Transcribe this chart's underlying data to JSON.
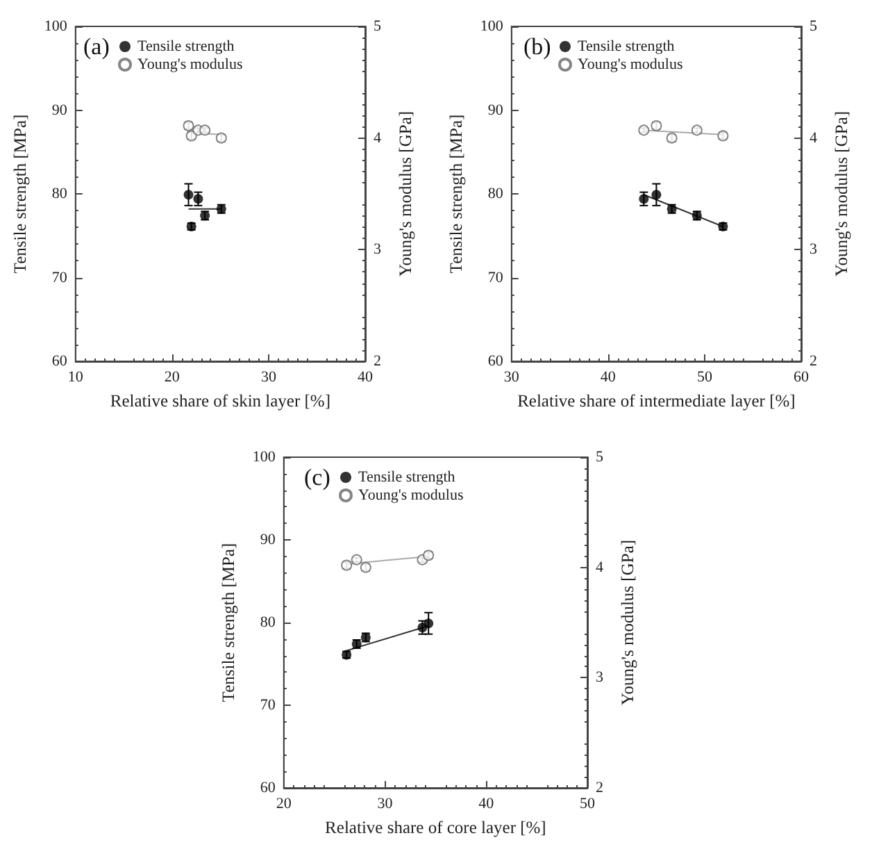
{
  "chart_data": [
    {
      "type": "scatter",
      "annotations": [
        "(a)"
      ],
      "xlabel": "Relative share of skin layer [%]",
      "ylabel": "Tensile strength [MPa]",
      "y2label": "Young's modulus [GPa]",
      "xlim": [
        10,
        40
      ],
      "xticks": [
        10,
        20,
        30,
        40
      ],
      "ylim": [
        60,
        100
      ],
      "yticks": [
        60,
        70,
        80,
        90,
        100
      ],
      "y2lim": [
        2,
        5
      ],
      "y2ticks": [
        2,
        3,
        4,
        5
      ],
      "grid": false,
      "legend": "top left",
      "marker": "circle",
      "series": [
        {
          "name": "Tensile strength",
          "color": "#000000",
          "x": [
            21.7,
            22.0,
            22.7,
            23.4,
            25.1
          ],
          "values": [
            79.9,
            76.1,
            79.4,
            77.4,
            78.2
          ],
          "errors": [
            1.3,
            0.4,
            0.8,
            0.5,
            0.5
          ]
        },
        {
          "name": "Young's modulus",
          "color": "#666666",
          "axis": "y2",
          "x": [
            21.7,
            22.0,
            22.7,
            23.4,
            25.1
          ],
          "values": [
            4.11,
            4.02,
            4.07,
            4.07,
            4.0
          ],
          "errors": [
            0.03,
            0.03,
            0.02,
            0.02,
            0.03
          ]
        },
        {
          "type": "line",
          "color": "#333333",
          "marker": "none",
          "x": [
            21.7,
            25.1
          ],
          "values": [
            78.2,
            78.2
          ]
        },
        {
          "type": "line",
          "color": "#aaaaaa",
          "marker": "none",
          "axis": "y2",
          "x": [
            21.7,
            25.1
          ],
          "values": [
            4.05,
            4.03
          ]
        }
      ]
    },
    {
      "type": "scatter",
      "annotations": [
        "(b)"
      ],
      "xlabel": "Relative share of intermediate layer [%]",
      "ylabel": "Tensile strength [MPa]",
      "y2label": "Young's modulus [GPa]",
      "xlim": [
        30,
        60
      ],
      "xticks": [
        30,
        40,
        50,
        60
      ],
      "ylim": [
        60,
        100
      ],
      "yticks": [
        60,
        70,
        80,
        90,
        100
      ],
      "y2lim": [
        2,
        5
      ],
      "y2ticks": [
        2,
        3,
        4,
        5
      ],
      "grid": false,
      "legend": "top left",
      "marker": "circle",
      "series": [
        {
          "name": "Tensile strength",
          "color": "#000000",
          "x": [
            43.7,
            45.0,
            46.6,
            49.2,
            51.9
          ],
          "values": [
            79.4,
            79.9,
            78.2,
            77.4,
            76.1
          ],
          "errors": [
            0.8,
            1.3,
            0.5,
            0.5,
            0.4
          ]
        },
        {
          "name": "Young's modulus",
          "color": "#666666",
          "axis": "y2",
          "x": [
            43.7,
            45.0,
            46.6,
            49.2,
            51.9
          ],
          "values": [
            4.07,
            4.11,
            4.0,
            4.07,
            4.02
          ],
          "errors": [
            0.02,
            0.03,
            0.03,
            0.02,
            0.03
          ]
        },
        {
          "type": "line",
          "color": "#333333",
          "marker": "none",
          "x": [
            43.7,
            51.9
          ],
          "values": [
            79.9,
            76.1
          ]
        },
        {
          "type": "line",
          "color": "#aaaaaa",
          "marker": "none",
          "axis": "y2",
          "x": [
            43.7,
            51.9
          ],
          "values": [
            4.07,
            4.03
          ]
        }
      ]
    },
    {
      "type": "scatter",
      "annotations": [
        "(c)"
      ],
      "xlabel": "Relative share of core layer [%]",
      "ylabel": "Tensile strength [MPa]",
      "y2label": "Young's modulus [GPa]",
      "xlim": [
        20,
        50
      ],
      "xticks": [
        20,
        30,
        40,
        50
      ],
      "ylim": [
        60,
        100
      ],
      "yticks": [
        60,
        70,
        80,
        90,
        100
      ],
      "y2lim": [
        2,
        5
      ],
      "y2ticks": [
        2,
        3,
        4,
        5
      ],
      "grid": false,
      "legend": "top left",
      "marker": "circle",
      "series": [
        {
          "name": "Tensile strength",
          "color": "#000000",
          "x": [
            26.2,
            27.2,
            28.1,
            33.7,
            34.3
          ],
          "values": [
            76.1,
            77.4,
            78.2,
            79.4,
            79.9
          ],
          "errors": [
            0.4,
            0.5,
            0.5,
            0.8,
            1.3
          ]
        },
        {
          "name": "Young's modulus",
          "color": "#666666",
          "axis": "y2",
          "x": [
            26.2,
            27.2,
            28.1,
            33.7,
            34.3
          ],
          "values": [
            4.02,
            4.07,
            4.0,
            4.07,
            4.11
          ],
          "errors": [
            0.03,
            0.02,
            0.03,
            0.02,
            0.03
          ]
        },
        {
          "type": "line",
          "color": "#333333",
          "marker": "none",
          "x": [
            26.2,
            34.3
          ],
          "values": [
            76.6,
            79.6
          ]
        },
        {
          "type": "line",
          "color": "#aaaaaa",
          "marker": "none",
          "axis": "y2",
          "x": [
            26.2,
            34.3
          ],
          "values": [
            4.03,
            4.1
          ]
        }
      ]
    }
  ]
}
